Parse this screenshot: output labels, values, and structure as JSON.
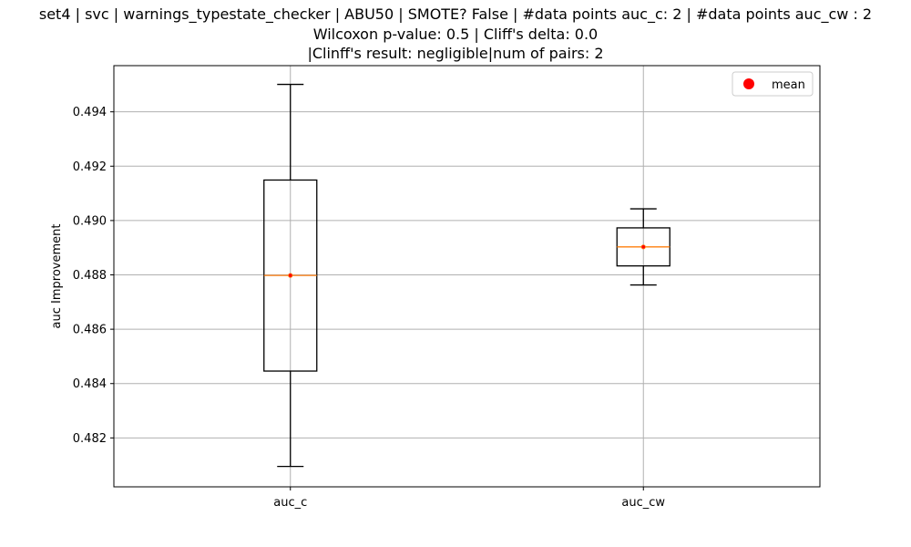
{
  "chart_data": {
    "type": "box",
    "title_lines": [
      "set4 | svc | warnings_typestate_checker | ABU50 | SMOTE? False | #data points auc_c: 2 | #data points auc_cw : 2",
      "Wilcoxon p-value: 0.5 | Cliff's delta: 0.0",
      "|Clinff's result: negligible|num of pairs: 2"
    ],
    "xlabel": "",
    "ylabel": "auc Improvement",
    "ylim": [
      0.4802,
      0.4957
    ],
    "yticks": [
      0.482,
      0.484,
      0.486,
      0.488,
      0.49,
      0.492,
      0.494
    ],
    "grid": true,
    "legend": {
      "position": "top-right",
      "entries": [
        {
          "label": "mean",
          "color": "#ff0000",
          "marker": "circle"
        }
      ]
    },
    "categories": [
      "auc_c",
      "auc_cw"
    ],
    "boxes": [
      {
        "name": "auc_c",
        "whisker_low": 0.48095,
        "q1": 0.48446,
        "median": 0.48798,
        "q3": 0.49149,
        "whisker_high": 0.49501,
        "mean": 0.48798
      },
      {
        "name": "auc_cw",
        "whisker_low": 0.48763,
        "q1": 0.48833,
        "median": 0.48903,
        "q3": 0.48973,
        "whisker_high": 0.49043,
        "mean": 0.48903
      }
    ],
    "colors": {
      "box": "#000000",
      "median": "#ff7f0e",
      "mean": "#ff0000",
      "grid": "#b0b0b0"
    }
  }
}
